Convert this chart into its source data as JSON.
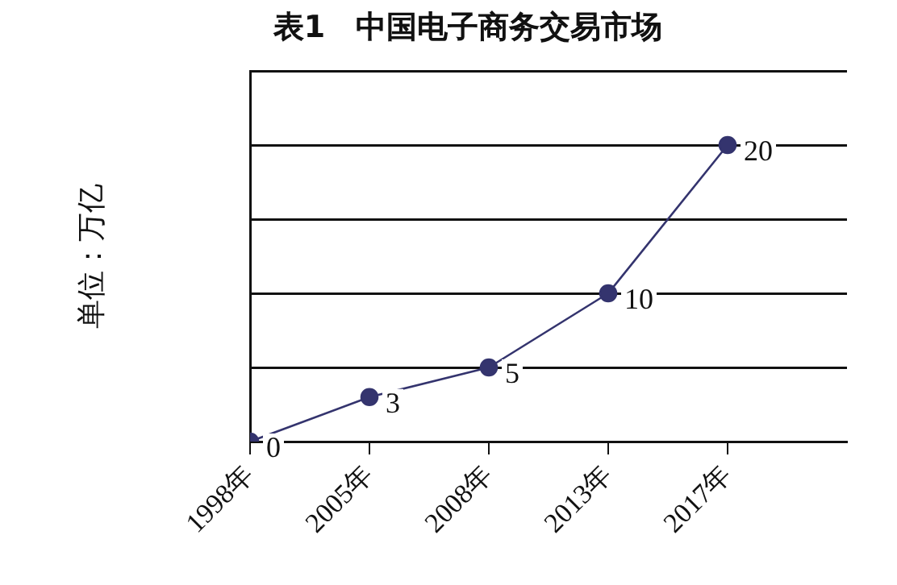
{
  "chart_data": {
    "type": "line",
    "title": "表1　中国电子商务交易市场",
    "ylabel": "单位：万亿",
    "categories": [
      "1998年",
      "2005年",
      "2008年",
      "2013年",
      "2017年"
    ],
    "series": [
      {
        "color": "#34346e",
        "values": [
          0,
          3,
          5,
          10,
          20
        ]
      }
    ],
    "ylim": [
      0,
      25
    ],
    "yticks": [
      {
        "value": 0,
        "label": null
      },
      {
        "value": 5,
        "label": null
      },
      {
        "value": 10,
        "label": null
      },
      {
        "value": 15,
        "label": null
      },
      {
        "value": 20,
        "label": null
      },
      {
        "value": 25,
        "label": null
      }
    ],
    "tick_labels": "x",
    "grid": "y",
    "legend": false,
    "marker": "circle",
    "line_style": "solid",
    "data_labels": true
  }
}
